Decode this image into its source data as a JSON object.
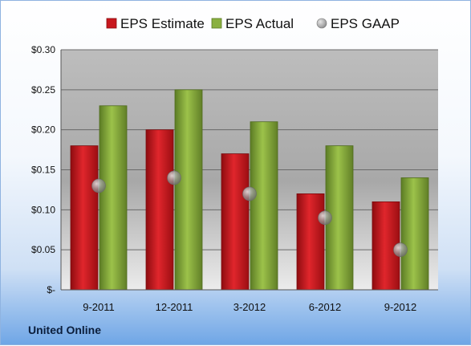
{
  "company": "United Online",
  "chart_data": {
    "type": "bar",
    "categories": [
      "9-2011",
      "12-2011",
      "3-2012",
      "6-2012",
      "9-2012"
    ],
    "series": [
      {
        "name": "EPS Estimate",
        "kind": "bar",
        "color": "#c8181e",
        "values": [
          0.18,
          0.2,
          0.17,
          0.12,
          0.11
        ]
      },
      {
        "name": "EPS Actual",
        "kind": "bar",
        "color": "#7fa23a",
        "values": [
          0.23,
          0.25,
          0.21,
          0.18,
          0.14
        ]
      },
      {
        "name": "EPS GAAP",
        "kind": "marker",
        "color": "#9a9a9a",
        "values": [
          0.13,
          0.14,
          0.12,
          0.09,
          0.05
        ]
      }
    ],
    "yticks": [
      0,
      0.05,
      0.1,
      0.15,
      0.2,
      0.25,
      0.3
    ],
    "ytick_labels": [
      "$-",
      "$0.05",
      "$0.10",
      "$0.15",
      "$0.20",
      "$0.25",
      "$0.30"
    ],
    "ylim": [
      0,
      0.3
    ],
    "grid": true,
    "legend_position": "top"
  }
}
